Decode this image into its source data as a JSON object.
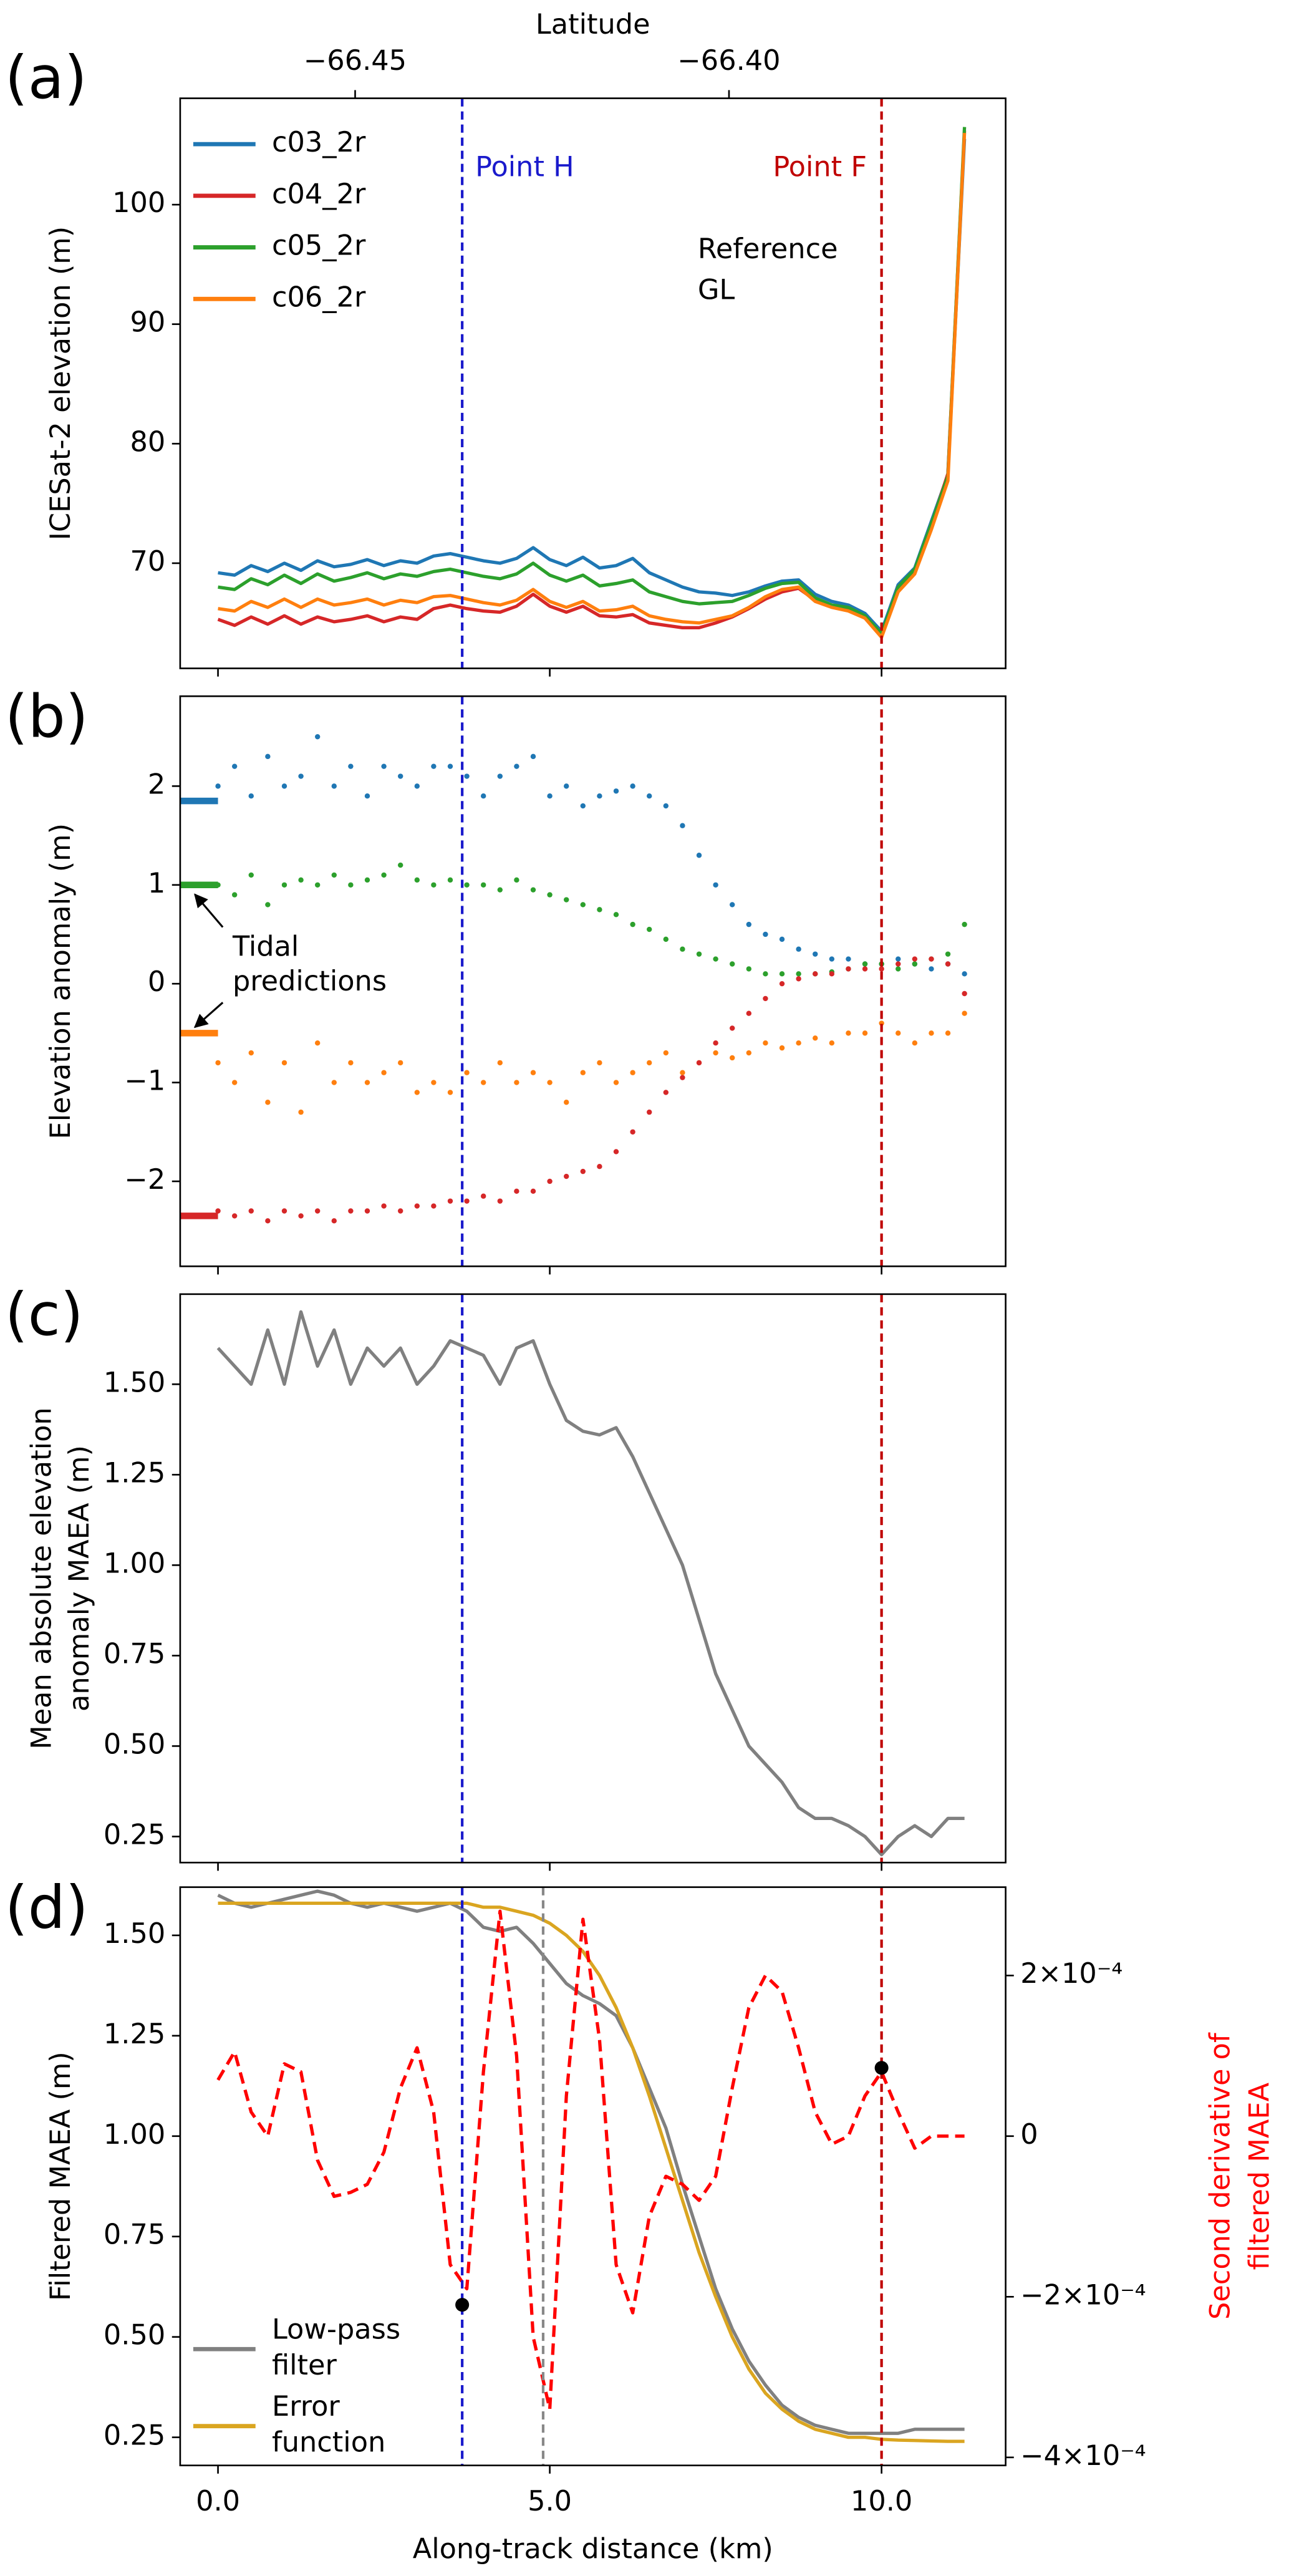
{
  "chart_data": [
    {
      "type": "line",
      "panel_label": "(a)",
      "ylabel": [
        "ICESat-2 elevation (m)"
      ],
      "xlim": [
        -0.57,
        11.87
      ],
      "xticks": [
        0,
        5,
        10
      ],
      "xtick_labels": false,
      "x2label": "Latitude",
      "x2lim": [
        -66.4734,
        -66.363
      ],
      "x2ticks": [
        {
          "value": -66.45,
          "label": "−66.45"
        },
        {
          "value": -66.4,
          "label": "−66.40"
        }
      ],
      "ylim": [
        61.2,
        108.9
      ],
      "yticks": [
        70,
        80,
        90,
        100
      ],
      "legend": "upper left",
      "vlines": [
        {
          "x": 3.68,
          "color": "#1a1acc",
          "label": "Point H"
        },
        {
          "x": 10.0,
          "color": "#c00000",
          "label": "Point F"
        }
      ],
      "annotation": [
        "Reference",
        "GL"
      ],
      "x": [
        0,
        0.25,
        0.5,
        0.75,
        1,
        1.25,
        1.5,
        1.75,
        2,
        2.25,
        2.5,
        2.75,
        3,
        3.25,
        3.5,
        3.75,
        4,
        4.25,
        4.5,
        4.75,
        5,
        5.25,
        5.5,
        5.75,
        6,
        6.25,
        6.5,
        6.75,
        7,
        7.25,
        7.5,
        7.75,
        8,
        8.25,
        8.5,
        8.75,
        9,
        9.25,
        9.5,
        9.75,
        10,
        10.25,
        10.5,
        10.75,
        11,
        11.25
      ],
      "series": [
        {
          "name": "c03_2r",
          "color": "#1f77b4",
          "values": [
            69.2,
            69.0,
            69.8,
            69.3,
            70.0,
            69.4,
            70.2,
            69.7,
            69.9,
            70.3,
            69.8,
            70.2,
            70.0,
            70.6,
            70.8,
            70.5,
            70.2,
            70.0,
            70.4,
            71.3,
            70.3,
            69.8,
            70.5,
            69.6,
            69.8,
            70.4,
            69.2,
            68.6,
            68.0,
            67.6,
            67.5,
            67.3,
            67.6,
            68.1,
            68.5,
            68.6,
            67.4,
            66.8,
            66.5,
            65.8,
            64.3,
            68.2,
            69.6,
            73.5,
            77.4,
            105.5
          ]
        },
        {
          "name": "c04_2r",
          "color": "#d62728",
          "values": [
            65.3,
            64.8,
            65.5,
            64.9,
            65.6,
            64.9,
            65.5,
            65.1,
            65.3,
            65.6,
            65.1,
            65.5,
            65.3,
            66.2,
            66.5,
            66.2,
            66.0,
            65.9,
            66.4,
            67.4,
            66.4,
            65.9,
            66.4,
            65.6,
            65.5,
            65.7,
            65.0,
            64.8,
            64.6,
            64.6,
            65.0,
            65.5,
            66.2,
            67.0,
            67.6,
            67.9,
            66.9,
            66.4,
            66.1,
            65.5,
            64.0,
            68.0,
            69.4,
            73.2,
            77.5,
            106.2
          ]
        },
        {
          "name": "c05_2r",
          "color": "#2ca02c",
          "values": [
            68.0,
            67.8,
            68.7,
            68.2,
            69.0,
            68.3,
            69.1,
            68.5,
            68.8,
            69.2,
            68.7,
            69.1,
            68.9,
            69.3,
            69.5,
            69.2,
            68.9,
            68.7,
            69.1,
            70.0,
            69.0,
            68.5,
            69.0,
            68.1,
            68.3,
            68.6,
            67.6,
            67.2,
            66.8,
            66.6,
            66.7,
            66.8,
            67.3,
            67.9,
            68.3,
            68.4,
            67.1,
            66.5,
            66.3,
            65.6,
            64.1,
            68.0,
            69.5,
            73.3,
            77.3,
            106.5
          ]
        },
        {
          "name": "c06_2r",
          "color": "#ff7f0e",
          "values": [
            66.2,
            66.0,
            66.8,
            66.3,
            67.0,
            66.3,
            67.0,
            66.5,
            66.7,
            67.0,
            66.5,
            66.9,
            66.7,
            67.2,
            67.3,
            67.0,
            66.7,
            66.5,
            66.9,
            67.8,
            66.8,
            66.3,
            66.8,
            66.0,
            66.1,
            66.4,
            65.6,
            65.3,
            65.1,
            65.0,
            65.3,
            65.6,
            66.3,
            67.2,
            67.8,
            68.0,
            66.8,
            66.3,
            66.0,
            65.4,
            63.8,
            67.6,
            69.1,
            72.8,
            76.9,
            106.0
          ]
        }
      ]
    },
    {
      "type": "scatter",
      "panel_label": "(b)",
      "ylabel": [
        "Elevation anomaly (m)"
      ],
      "xlim": [
        -0.57,
        11.87
      ],
      "xticks": [
        0,
        5,
        10
      ],
      "xtick_labels": false,
      "ylim": [
        -2.86,
        2.91
      ],
      "yticks": [
        {
          "value": -2,
          "label": "−2"
        },
        {
          "value": -1,
          "label": "−1"
        },
        0,
        1,
        2
      ],
      "vlines": [
        {
          "x": 3.68,
          "color": "#1a1acc"
        },
        {
          "x": 10.0,
          "color": "#c00000"
        }
      ],
      "annotation": [
        "Tidal",
        "predictions"
      ],
      "x": [
        0,
        0.25,
        0.5,
        0.75,
        1,
        1.25,
        1.5,
        1.75,
        2,
        2.25,
        2.5,
        2.75,
        3,
        3.25,
        3.5,
        3.75,
        4,
        4.25,
        4.5,
        4.75,
        5,
        5.25,
        5.5,
        5.75,
        6,
        6.25,
        6.5,
        6.75,
        7,
        7.25,
        7.5,
        7.75,
        8,
        8.25,
        8.5,
        8.75,
        9,
        9.25,
        9.5,
        9.75,
        10,
        10.25,
        10.5,
        10.75,
        11,
        11.25
      ],
      "series": [
        {
          "color": "#1f77b4",
          "tidal_prediction": 1.85,
          "values": [
            2.0,
            2.2,
            1.9,
            2.3,
            2.0,
            2.1,
            2.5,
            2.0,
            2.2,
            1.9,
            2.2,
            2.1,
            2.0,
            2.2,
            2.2,
            2.1,
            1.9,
            2.1,
            2.2,
            2.3,
            1.9,
            2.0,
            1.8,
            1.9,
            1.95,
            2.0,
            1.9,
            1.8,
            1.6,
            1.3,
            1.0,
            0.8,
            0.6,
            0.5,
            0.45,
            0.35,
            0.3,
            0.25,
            0.25,
            0.2,
            0.2,
            0.25,
            0.2,
            0.15,
            0.2,
            0.1
          ]
        },
        {
          "color": "#2ca02c",
          "tidal_prediction": 1.0,
          "values": [
            1.0,
            0.9,
            1.1,
            0.8,
            1.0,
            1.05,
            1.0,
            1.1,
            1.0,
            1.05,
            1.1,
            1.2,
            1.05,
            1.0,
            1.05,
            1.0,
            1.0,
            0.95,
            1.05,
            0.95,
            0.9,
            0.85,
            0.8,
            0.75,
            0.7,
            0.6,
            0.55,
            0.45,
            0.35,
            0.3,
            0.25,
            0.2,
            0.15,
            0.1,
            0.1,
            0.1,
            0.1,
            0.12,
            0.15,
            0.2,
            0.2,
            0.15,
            0.2,
            0.25,
            0.3,
            0.6
          ]
        },
        {
          "color": "#ff7f0e",
          "tidal_prediction": -0.5,
          "values": [
            -0.8,
            -1.0,
            -0.7,
            -1.2,
            -0.8,
            -1.3,
            -0.6,
            -1.0,
            -0.8,
            -1.0,
            -0.9,
            -0.8,
            -1.1,
            -1.0,
            -1.1,
            -0.9,
            -1.0,
            -0.8,
            -1.0,
            -0.9,
            -1.0,
            -1.2,
            -0.9,
            -0.8,
            -1.0,
            -0.9,
            -0.8,
            -0.7,
            -0.9,
            -0.8,
            -0.7,
            -0.75,
            -0.7,
            -0.6,
            -0.65,
            -0.6,
            -0.55,
            -0.6,
            -0.5,
            -0.5,
            -0.4,
            -0.5,
            -0.6,
            -0.5,
            -0.5,
            -0.3
          ]
        },
        {
          "color": "#d62728",
          "tidal_prediction": -2.35,
          "values": [
            -2.3,
            -2.35,
            -2.3,
            -2.4,
            -2.3,
            -2.35,
            -2.3,
            -2.4,
            -2.3,
            -2.3,
            -2.25,
            -2.3,
            -2.25,
            -2.25,
            -2.2,
            -2.2,
            -2.15,
            -2.2,
            -2.1,
            -2.1,
            -2.0,
            -1.95,
            -1.9,
            -1.85,
            -1.7,
            -1.5,
            -1.3,
            -1.1,
            -0.95,
            -0.8,
            -0.6,
            -0.45,
            -0.3,
            -0.15,
            0.0,
            0.05,
            0.1,
            0.1,
            0.15,
            0.15,
            0.15,
            0.2,
            0.25,
            0.25,
            0.2,
            -0.1
          ]
        }
      ]
    },
    {
      "type": "line",
      "panel_label": "(c)",
      "ylabel": [
        "Mean absolute elevation",
        "anomaly MAEA (m)"
      ],
      "xlim": [
        -0.57,
        11.87
      ],
      "xticks": [
        0,
        5,
        10
      ],
      "xtick_labels": false,
      "ylim": [
        0.178,
        1.749
      ],
      "yticks": [
        0.25,
        {
          "value": 0.5,
          "label": "0.50"
        },
        0.75,
        {
          "value": 1,
          "label": "1.00"
        },
        1.25,
        {
          "value": 1.5,
          "label": "1.50"
        }
      ],
      "vlines": [
        {
          "x": 3.68,
          "color": "#1a1acc"
        },
        {
          "x": 10.0,
          "color": "#c00000"
        }
      ],
      "x": [
        0,
        0.25,
        0.5,
        0.75,
        1,
        1.25,
        1.5,
        1.75,
        2,
        2.25,
        2.5,
        2.75,
        3,
        3.25,
        3.5,
        3.75,
        4,
        4.25,
        4.5,
        4.75,
        5,
        5.25,
        5.5,
        5.75,
        6,
        6.25,
        6.5,
        6.75,
        7,
        7.25,
        7.5,
        7.75,
        8,
        8.25,
        8.5,
        8.75,
        9,
        9.25,
        9.5,
        9.75,
        10,
        10.25,
        10.5,
        10.75,
        11,
        11.25
      ],
      "series": [
        {
          "color": "#808080",
          "values": [
            1.6,
            1.55,
            1.5,
            1.65,
            1.5,
            1.7,
            1.55,
            1.65,
            1.5,
            1.6,
            1.55,
            1.6,
            1.5,
            1.55,
            1.62,
            1.6,
            1.58,
            1.5,
            1.6,
            1.62,
            1.5,
            1.4,
            1.37,
            1.36,
            1.38,
            1.3,
            1.2,
            1.1,
            1.0,
            0.85,
            0.7,
            0.6,
            0.5,
            0.45,
            0.4,
            0.33,
            0.3,
            0.3,
            0.28,
            0.25,
            0.2,
            0.25,
            0.28,
            0.25,
            0.3,
            0.3
          ]
        }
      ]
    },
    {
      "type": "line",
      "panel_label": "(d)",
      "ylabel": [
        "Filtered MAEA (m)"
      ],
      "xlabel": "Along-track distance (km)",
      "y2label": [
        "Second derivative of",
        "filtered MAEA"
      ],
      "y2label_color": "#ff0000",
      "xlim": [
        -0.57,
        11.87
      ],
      "xticks": [
        {
          "value": 0,
          "label": "0.0"
        },
        {
          "value": 5,
          "label": "5.0"
        },
        {
          "value": 10,
          "label": "10.0"
        }
      ],
      "ylim": [
        0.18,
        1.62
      ],
      "yticks": [
        0.25,
        {
          "value": 0.5,
          "label": "0.50"
        },
        0.75,
        {
          "value": 1,
          "label": "1.00"
        },
        1.25,
        {
          "value": 1.5,
          "label": "1.50"
        }
      ],
      "y2lim": [
        -0.00041,
        0.00031
      ],
      "y2ticks": [
        {
          "value": -0.0004,
          "label": "−4×10⁻⁴"
        },
        {
          "value": -0.0002,
          "label": "−2×10⁻⁴"
        },
        0,
        {
          "value": 0.0002,
          "label": "2×10⁻⁴"
        }
      ],
      "legend": "lower left",
      "vlines": [
        {
          "x": 3.68,
          "color": "#1a1acc"
        },
        {
          "x": 4.9,
          "color": "#888888"
        },
        {
          "x": 10.0,
          "color": "#c00000"
        }
      ],
      "markers": [
        {
          "x": 3.68,
          "value": -0.00021,
          "color": "#000000"
        },
        {
          "x": 10.0,
          "value": 8.5e-05,
          "color": "#000000"
        }
      ],
      "x": [
        0,
        0.25,
        0.5,
        0.75,
        1,
        1.25,
        1.5,
        1.75,
        2,
        2.25,
        2.5,
        2.75,
        3,
        3.25,
        3.5,
        3.75,
        4,
        4.25,
        4.5,
        4.75,
        5,
        5.25,
        5.5,
        5.75,
        6,
        6.25,
        6.5,
        6.75,
        7,
        7.25,
        7.5,
        7.75,
        8,
        8.25,
        8.5,
        8.75,
        9,
        9.25,
        9.5,
        9.75,
        10,
        10.25,
        10.5,
        10.75,
        11,
        11.25
      ],
      "series": [
        {
          "name": [
            "Low-pass",
            "filter"
          ],
          "color": "#808080",
          "values": [
            1.6,
            1.58,
            1.57,
            1.58,
            1.59,
            1.6,
            1.61,
            1.6,
            1.58,
            1.57,
            1.58,
            1.57,
            1.56,
            1.57,
            1.58,
            1.56,
            1.52,
            1.51,
            1.52,
            1.48,
            1.43,
            1.38,
            1.35,
            1.33,
            1.3,
            1.22,
            1.12,
            1.02,
            0.88,
            0.75,
            0.62,
            0.52,
            0.44,
            0.38,
            0.33,
            0.3,
            0.28,
            0.27,
            0.26,
            0.26,
            0.26,
            0.26,
            0.27,
            0.27,
            0.27,
            0.27
          ]
        },
        {
          "name": [
            "Error",
            "function"
          ],
          "color": "#daa520",
          "values": [
            1.58,
            1.58,
            1.58,
            1.58,
            1.58,
            1.58,
            1.58,
            1.58,
            1.58,
            1.58,
            1.58,
            1.58,
            1.58,
            1.58,
            1.58,
            1.58,
            1.57,
            1.57,
            1.56,
            1.55,
            1.53,
            1.5,
            1.46,
            1.4,
            1.32,
            1.22,
            1.1,
            0.97,
            0.84,
            0.71,
            0.6,
            0.5,
            0.42,
            0.36,
            0.32,
            0.29,
            0.27,
            0.26,
            0.25,
            0.25,
            0.245,
            0.243,
            0.242,
            0.241,
            0.24,
            0.24
          ]
        },
        {
          "color": "#ff0000",
          "axis": "y2",
          "dashed": true,
          "values": [
            7e-05,
            0.000105,
            3e-05,
            0.0,
            9e-05,
            8e-05,
            -3e-05,
            -7.5e-05,
            -7e-05,
            -6e-05,
            -2e-05,
            6e-05,
            0.00011,
            3e-05,
            -0.00016,
            -0.00019,
            8e-05,
            0.00028,
            0.0001,
            -0.00025,
            -0.00034,
            5e-05,
            0.00027,
            0.00012,
            -0.00016,
            -0.00022,
            -0.0001,
            -5e-05,
            -6e-05,
            -8e-05,
            -5e-05,
            6e-05,
            0.00016,
            0.0002,
            0.00018,
            0.00011,
            3e-05,
            -1e-05,
            0.0,
            5e-05,
            8e-05,
            3e-05,
            -1.5e-05,
            0.0,
            0.0,
            0.0
          ]
        }
      ]
    }
  ]
}
